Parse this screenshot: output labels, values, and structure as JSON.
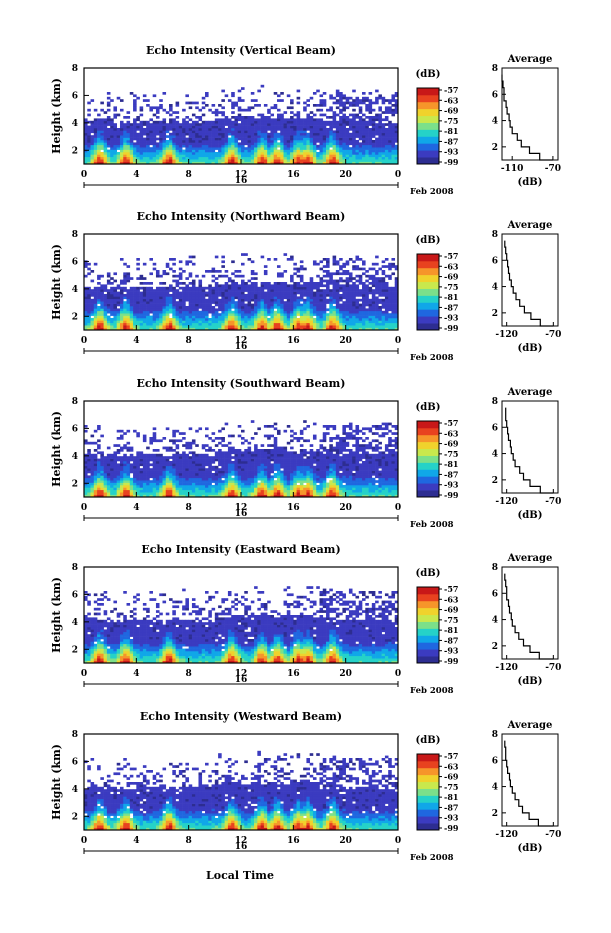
{
  "figure": {
    "date_label": "Feb 2008",
    "day_label": "16",
    "xlabel": "Local Time",
    "cbar_unit_label": "(dB)",
    "avg_title": "Average",
    "avg_xlabel": "(dB)"
  },
  "colors": {
    "colormap": [
      "#2d2d91",
      "#3b3bc0",
      "#1f67e0",
      "#10a7e8",
      "#25d2c8",
      "#7be08a",
      "#c9e84d",
      "#f0d22c",
      "#f6952a",
      "#e8421f",
      "#c81818"
    ],
    "line": "#000000",
    "background": "#ffffff"
  },
  "chart_data": [
    {
      "type": "heatmap",
      "title": "Echo Intensity (Vertical Beam)",
      "ylabel": "Height (km)",
      "x_ticks": [
        "0",
        "4",
        "8",
        "12",
        "16",
        "20",
        "0"
      ],
      "x_range": [
        0,
        24
      ],
      "y_ticks": [
        "2",
        "4",
        "6",
        "8"
      ],
      "y_range": [
        1,
        8
      ],
      "colorbar_ticks": [
        "-57",
        "-63",
        "-69",
        "-75",
        "-81",
        "-87",
        "-93",
        "-99"
      ],
      "avg_title": "Average",
      "avg_x_ticks": [
        "-110",
        "-70"
      ],
      "avg_xlim": [
        -120,
        -65
      ],
      "avg_profile": {
        "height": [
          1,
          1.5,
          2,
          2.5,
          3,
          3.5,
          4,
          4.5,
          5,
          5.5,
          6,
          6.5,
          7,
          7.5
        ],
        "db": [
          -70,
          -83,
          -93,
          -101,
          -105,
          -110,
          -112,
          -113,
          -115,
          -116,
          -118,
          -118,
          -119,
          -120
        ]
      }
    },
    {
      "type": "heatmap",
      "title": "Echo Intensity (Northward Beam)",
      "ylabel": "Height (km)",
      "x_ticks": [
        "0",
        "4",
        "8",
        "12",
        "16",
        "20",
        "0"
      ],
      "x_range": [
        0,
        24
      ],
      "y_ticks": [
        "2",
        "4",
        "6",
        "8"
      ],
      "y_range": [
        1,
        8
      ],
      "colorbar_ticks": [
        "-57",
        "-63",
        "-69",
        "-75",
        "-81",
        "-87",
        "-93",
        "-99"
      ],
      "avg_title": "Average",
      "avg_x_ticks": [
        "-120",
        "-70"
      ],
      "avg_xlim": [
        -125,
        -65
      ],
      "avg_profile": {
        "height": [
          1,
          1.5,
          2,
          2.5,
          3,
          3.5,
          4,
          4.5,
          5,
          5.5,
          6,
          6.5,
          7,
          7.5
        ],
        "db": [
          -70,
          -84,
          -94,
          -101,
          -106,
          -110,
          -113,
          -115,
          -117,
          -118,
          -119,
          -120,
          -121,
          -122
        ]
      }
    },
    {
      "type": "heatmap",
      "title": "Echo Intensity (Southward Beam)",
      "ylabel": "Height (km)",
      "x_ticks": [
        "0",
        "4",
        "8",
        "12",
        "16",
        "20",
        "0"
      ],
      "x_range": [
        0,
        24
      ],
      "y_ticks": [
        "2",
        "4",
        "6",
        "8"
      ],
      "y_range": [
        1,
        8
      ],
      "colorbar_ticks": [
        "-57",
        "-63",
        "-69",
        "-75",
        "-81",
        "-87",
        "-93",
        "-99"
      ],
      "avg_title": "Average",
      "avg_x_ticks": [
        "-120",
        "-70"
      ],
      "avg_xlim": [
        -125,
        -65
      ],
      "avg_profile": {
        "height": [
          1,
          1.5,
          2,
          2.5,
          3,
          3.5,
          4,
          4.5,
          5,
          5.5,
          6,
          6.5,
          7,
          7.5
        ],
        "db": [
          -70,
          -84,
          -95,
          -102,
          -106,
          -111,
          -113,
          -115,
          -116,
          -118,
          -119,
          -120,
          -121,
          -121
        ]
      }
    },
    {
      "type": "heatmap",
      "title": "Echo Intensity (Eastward Beam)",
      "ylabel": "Height (km)",
      "x_ticks": [
        "0",
        "4",
        "8",
        "12",
        "16",
        "20",
        "0"
      ],
      "x_range": [
        0,
        24
      ],
      "y_ticks": [
        "2",
        "4",
        "6",
        "8"
      ],
      "y_range": [
        1,
        8
      ],
      "colorbar_ticks": [
        "-57",
        "-63",
        "-69",
        "-75",
        "-81",
        "-87",
        "-93",
        "-99"
      ],
      "avg_title": "Average",
      "avg_x_ticks": [
        "-120",
        "-70"
      ],
      "avg_xlim": [
        -125,
        -65
      ],
      "avg_profile": {
        "height": [
          1,
          1.5,
          2,
          2.5,
          3,
          3.5,
          4,
          4.5,
          5,
          5.5,
          6,
          6.5,
          7,
          7.5
        ],
        "db": [
          -70,
          -85,
          -95,
          -102,
          -107,
          -111,
          -114,
          -115,
          -117,
          -118,
          -120,
          -120,
          -121,
          -122
        ]
      }
    },
    {
      "type": "heatmap",
      "title": "Echo Intensity (Westward Beam)",
      "ylabel": "Height (km)",
      "x_ticks": [
        "0",
        "4",
        "8",
        "12",
        "16",
        "20",
        "0"
      ],
      "x_range": [
        0,
        24
      ],
      "y_ticks": [
        "2",
        "4",
        "6",
        "8"
      ],
      "y_range": [
        1,
        8
      ],
      "colorbar_ticks": [
        "-57",
        "-63",
        "-69",
        "-75",
        "-81",
        "-87",
        "-93",
        "-99"
      ],
      "avg_title": "Average",
      "avg_x_ticks": [
        "-120",
        "-70"
      ],
      "avg_xlim": [
        -125,
        -65
      ],
      "avg_profile": {
        "height": [
          1,
          1.5,
          2,
          2.5,
          3,
          3.5,
          4,
          4.5,
          5,
          5.5,
          6,
          6.5,
          7,
          7.5
        ],
        "db": [
          -70,
          -86,
          -96,
          -103,
          -107,
          -111,
          -114,
          -116,
          -117,
          -119,
          -120,
          -121,
          -121,
          -122
        ]
      }
    }
  ]
}
